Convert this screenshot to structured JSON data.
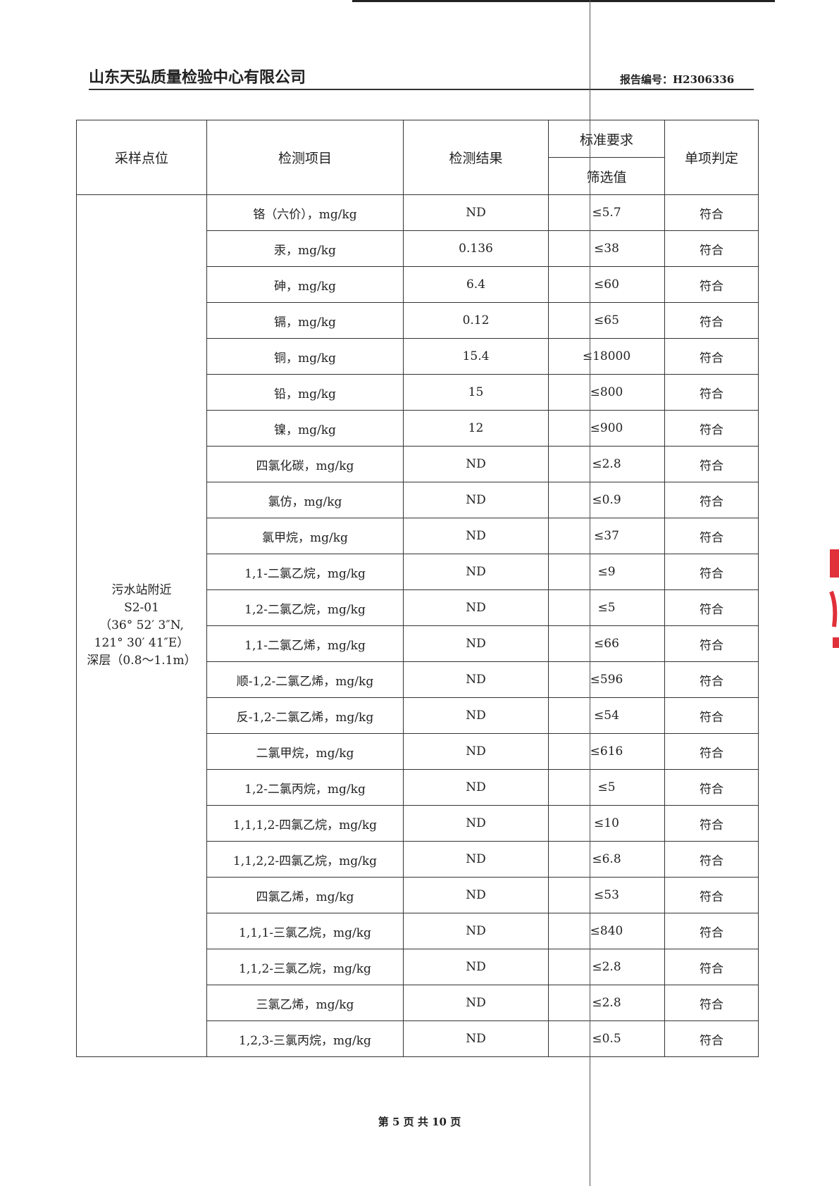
{
  "header": {
    "company": "山东天弘质量检验中心有限公司",
    "report_no": "报告编号：H2306336"
  },
  "table": {
    "headers": {
      "location": "采样点位",
      "item": "检测项目",
      "result": "检测结果",
      "standard": "标准要求",
      "screening": "筛选值",
      "judgement": "单项判定"
    },
    "location": [
      "污水站附近",
      "S2-01",
      "（36° 52′ 3″N,",
      "121° 30′ 41″E）",
      "深层（0.8～1.1m）"
    ],
    "rows": [
      {
        "item": "铬（六价），mg/kg",
        "result": "ND",
        "limit": "≤5.7",
        "judge": "符合"
      },
      {
        "item": "汞，mg/kg",
        "result": "0.136",
        "limit": "≤38",
        "judge": "符合"
      },
      {
        "item": "砷，mg/kg",
        "result": "6.4",
        "limit": "≤60",
        "judge": "符合"
      },
      {
        "item": "镉，mg/kg",
        "result": "0.12",
        "limit": "≤65",
        "judge": "符合"
      },
      {
        "item": "铜，mg/kg",
        "result": "15.4",
        "limit": "≤18000",
        "judge": "符合"
      },
      {
        "item": "铅，mg/kg",
        "result": "15",
        "limit": "≤800",
        "judge": "符合"
      },
      {
        "item": "镍，mg/kg",
        "result": "12",
        "limit": "≤900",
        "judge": "符合"
      },
      {
        "item": "四氯化碳，mg/kg",
        "result": "ND",
        "limit": "≤2.8",
        "judge": "符合"
      },
      {
        "item": "氯仿，mg/kg",
        "result": "ND",
        "limit": "≤0.9",
        "judge": "符合"
      },
      {
        "item": "氯甲烷，mg/kg",
        "result": "ND",
        "limit": "≤37",
        "judge": "符合"
      },
      {
        "item": "1,1-二氯乙烷，mg/kg",
        "result": "ND",
        "limit": "≤9",
        "judge": "符合"
      },
      {
        "item": "1,2-二氯乙烷，mg/kg",
        "result": "ND",
        "limit": "≤5",
        "judge": "符合"
      },
      {
        "item": "1,1-二氯乙烯，mg/kg",
        "result": "ND",
        "limit": "≤66",
        "judge": "符合"
      },
      {
        "item": "顺-1,2-二氯乙烯，mg/kg",
        "result": "ND",
        "limit": "≤596",
        "judge": "符合"
      },
      {
        "item": "反-1,2-二氯乙烯，mg/kg",
        "result": "ND",
        "limit": "≤54",
        "judge": "符合"
      },
      {
        "item": "二氯甲烷，mg/kg",
        "result": "ND",
        "limit": "≤616",
        "judge": "符合"
      },
      {
        "item": "1,2-二氯丙烷，mg/kg",
        "result": "ND",
        "limit": "≤5",
        "judge": "符合"
      },
      {
        "item": "1,1,1,2-四氯乙烷，mg/kg",
        "result": "ND",
        "limit": "≤10",
        "judge": "符合"
      },
      {
        "item": "1,1,2,2-四氯乙烷，mg/kg",
        "result": "ND",
        "limit": "≤6.8",
        "judge": "符合"
      },
      {
        "item": "四氯乙烯，mg/kg",
        "result": "ND",
        "limit": "≤53",
        "judge": "符合"
      },
      {
        "item": "1,1,1-三氯乙烷，mg/kg",
        "result": "ND",
        "limit": "≤840",
        "judge": "符合"
      },
      {
        "item": "1,1,2-三氯乙烷，mg/kg",
        "result": "ND",
        "limit": "≤2.8",
        "judge": "符合"
      },
      {
        "item": "三氯乙烯，mg/kg",
        "result": "ND",
        "limit": "≤2.8",
        "judge": "符合"
      },
      {
        "item": "1,2,3-三氯丙烷，mg/kg",
        "result": "ND",
        "limit": "≤0.5",
        "judge": "符合"
      }
    ]
  },
  "footer": {
    "page": "第 5 页 共 10 页"
  },
  "colors": {
    "stamp": "#e0303a",
    "rule": "#333333"
  }
}
